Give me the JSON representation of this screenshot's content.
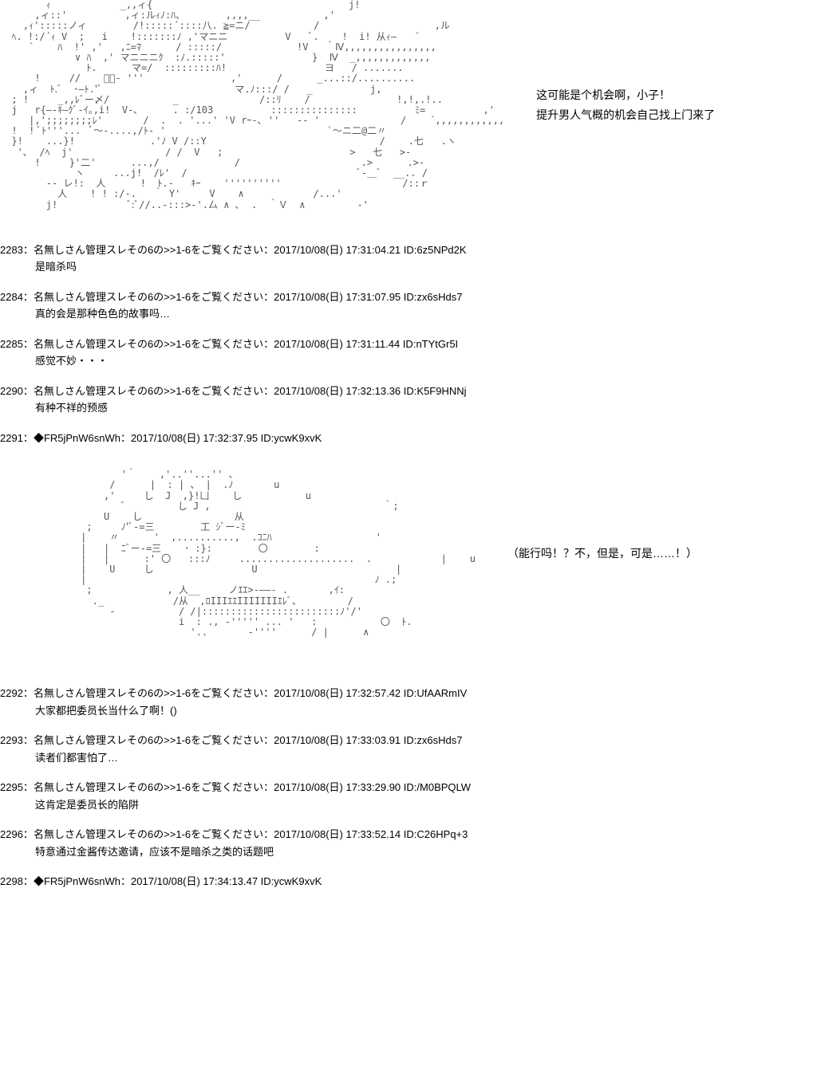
{
  "aa1": {
    "art": "        ｨ            _,,ィ{                                  j!\n      ,ィ::'          ,ィ:ルｨﾉ:ﾊ、       ,,,,__           ,'\n    ,ｨ':::::ノィ        /!:::::´::::八. ≧=ニ/           /                    ,ル\n  ﾍ. !:/´ｨ V  ;   i    !:::::::ﾉ ,'マニニ          V   ﾞ.    !  i! 从ｨ―   ´\n     `    ﾊ  !' ,'   ,ﾆ=ﾏ      / :::::/             !V   ｀Ⅳ,,,,,,,,,,,,,,,,\n             ∨ ﾊ  ,' マニニニｸ  :ﾉ.:::::'               }  Ⅳ  _,,,,,,,,,,,,,\n               ﾄ.      マ=/  :::::::::ﾊ!                 ヨ   / .......\n      !     //    ﾞｰ- '''               ,'      /      _...::/..........\n    ,ィ  ﾄ.ﾞ  ･―ﾄ.'ﾞ                       マ.ﾉ:::/ /   _          j,\n  ; !     _,,ﾚﾞー〆/           _              /::ﾘ    /               !,!,.!..\n  j   r{―-ｷ―ｸﾞ‐ｲ｡,i!  V‐､      . :/103          :::::::::::::::          ﾐ=          ,'\n     |,';;;;;;;;ﾚ'       /  .  . '...' 'V rｰ‐､ ''   -‐ '              /    ´,,,,,,,,,,,,\n  !  ! ﾞﾄ'''...  ﾞ〜-....,/ﾄ‐ '                            `〜ニ二@二〃\n  }!    ...}!             .'ﾉ V /::Y                              /    .七   .ヽ\n   '､  /ﾍ  j'                / /  V   ;                      >   七   >‐\n      !     }'二'      ...,/             /                     .>      .>‐\n             ヽ     ...j!  /ﾚ'  /                              ﾞ‐＿ﾞ  __.. /\n        ‐‐ レ!:  人      !  ﾄ.‐   ｷｰ    ''''''''''                     /::ｒ\n          人    ! ! :/‐.   ｀ Y'     V    ∧            /...'\n        j!            ﾞ:ﾞ//..‐:::>‐'.厶 ∧ ､  .  ｀Ｖ  ∧         ‐'",
    "caption_line1": "这可能是个机会啊，小子！",
    "caption_line2": "提升男人气概的机会自己找上门来了"
  },
  "posts_a": [
    {
      "num": "2283",
      "name": "名無しさん管理スレその6の>>1-6をご覧ください",
      "date": "2017/10/08(日) 17:31:04.21",
      "id": "6z5NPd2K",
      "body": "是暗杀吗"
    },
    {
      "num": "2284",
      "name": "名無しさん管理スレその6の>>1-6をご覧ください",
      "date": "2017/10/08(日) 17:31:07.95",
      "id": "zx6sHds7",
      "body": "真的会是那种色色的故事吗…"
    },
    {
      "num": "2285",
      "name": "名無しさん管理スレその6の>>1-6をご覧ください",
      "date": "2017/10/08(日) 17:31:11.44",
      "id": "nTYtGr5I",
      "body": "感觉不妙・・・"
    },
    {
      "num": "2290",
      "name": "名無しさん管理スレその6の>>1-6をご覧ください",
      "date": "2017/10/08(日) 17:32:13.36",
      "id": "K5F9HNNj",
      "body": "有种不祥的预感"
    }
  ],
  "trip_post_1": {
    "num": "2291",
    "trip": "◆FR5jPnW6snWh",
    "date": "2017/10/08(日) 17:32:37.95",
    "id": "ycwK9xvK"
  },
  "aa2": {
    "art": "                     '｀    ,'..''...'' 、\n                   /      |  : | 、 |  .ﾉ       u\n                  ,'     し  J  ,}!凵    し           u\n                     ﾞ         し J ,                              ｀;\n                  U    し                从\n               ;     ﾉ'ﾞ‐=三        工 ｼﾞー-ﾐ\n              |    〃      '  ,..........,  .ｺﾆﾊ                  '\n              |   |  ﾆﾞー-=三    ･ :}:        〇        :\n              |   |      :' 〇   :::ﾉ     ....................  .            |    u\n              |    U     し                 U                        |\n              |                                                  ﾉ .;\n               ;             , 人__     ノｴｴ>‐――‐ .       ,ｲ:\n                ._            /从  ,ﾛIIIｴｴIIIIIIIｴﾚﾞ、        /\n                   ‐           / /|::::::::::::::::::::::::ﾉ'/'\n                               i  : ., ‐''''' ... '   :           〇  ﾄ.\n                                 '..       ‐''''      / |      ∧",
    "caption": "（能行吗！？不，但是，可是……！）"
  },
  "posts_b": [
    {
      "num": "2292",
      "name": "名無しさん管理スレその6の>>1-6をご覧ください",
      "date": "2017/10/08(日) 17:32:57.42",
      "id": "UfAARmIV",
      "body": "大家都把委员长当什么了啊！()"
    },
    {
      "num": "2293",
      "name": "名無しさん管理スレその6の>>1-6をご覧ください",
      "date": "2017/10/08(日) 17:33:03.91",
      "id": "zx6sHds7",
      "body": "读者们都害怕了…"
    },
    {
      "num": "2295",
      "name": "名無しさん管理スレその6の>>1-6をご覧ください",
      "date": "2017/10/08(日) 17:33:29.90",
      "id": "/M0BPQLW",
      "body": "这肯定是委员长的陷阱"
    },
    {
      "num": "2296",
      "name": "名無しさん管理スレその6の>>1-6をご覧ください",
      "date": "2017/10/08(日) 17:33:52.14",
      "id": "C26HPq+3",
      "body": "特意通过金酱传达邀请，应该不是暗杀之类的话题吧"
    }
  ],
  "trip_post_2": {
    "num": "2298",
    "trip": "◆FR5jPnW6snWh",
    "date": "2017/10/08(日) 17:34:13.47",
    "id": "ycwK9xvK"
  }
}
